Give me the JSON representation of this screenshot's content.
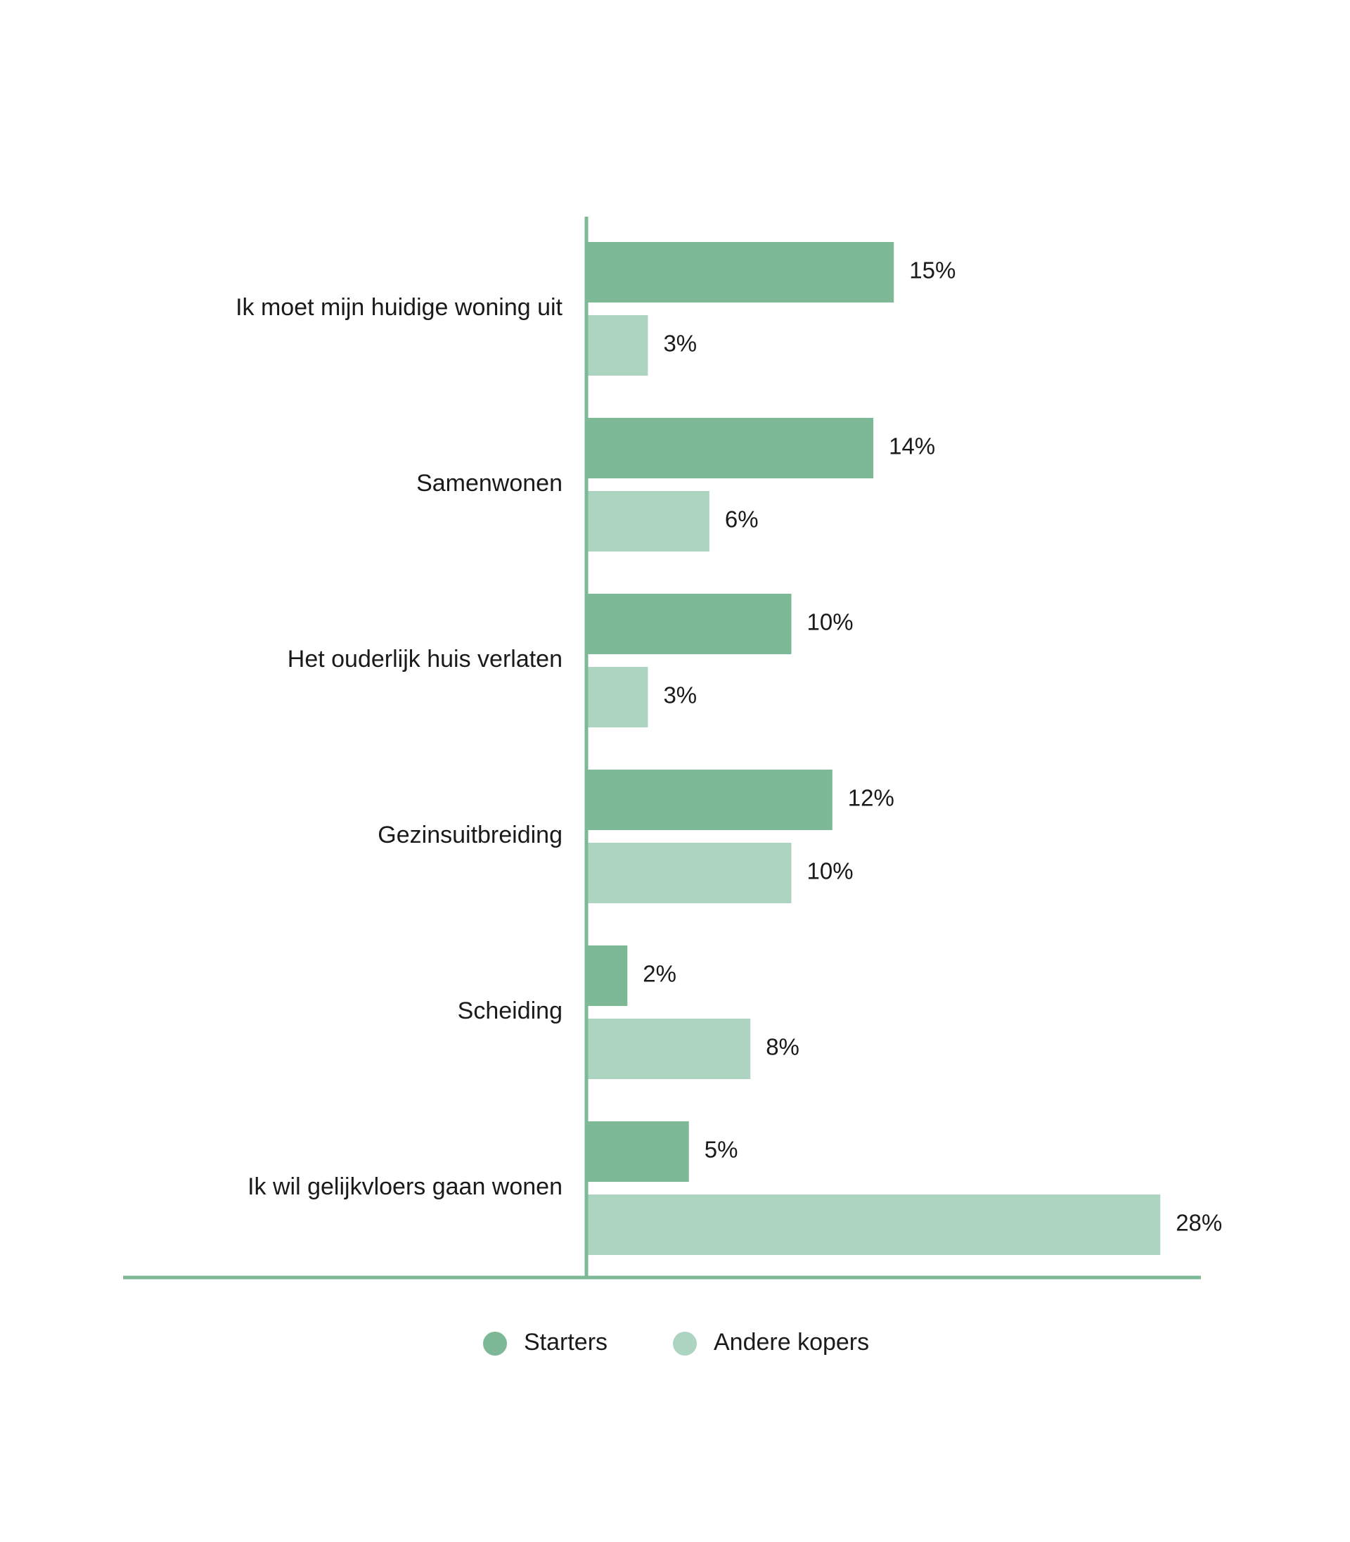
{
  "chart_data": {
    "type": "bar",
    "orientation": "horizontal",
    "categories": [
      "Ik moet mijn huidige woning uit",
      "Samenwonen",
      "Het ouderlijk huis verlaten",
      "Gezinsuitbreiding",
      "Scheiding",
      "Ik wil gelijkvloers gaan wonen"
    ],
    "series": [
      {
        "name": "Starters",
        "values": [
          15,
          14,
          10,
          12,
          2,
          5
        ],
        "labels": [
          "15%",
          "14%",
          "10%",
          "12%",
          "2%",
          "5%"
        ],
        "color": "#7db897"
      },
      {
        "name": "Andere kopers",
        "values": [
          3,
          6,
          3,
          10,
          8,
          28
        ],
        "labels": [
          "3%",
          "6%",
          "3%",
          "10%",
          "8%",
          "28%"
        ],
        "color": "#add4c1"
      }
    ],
    "xlim": [
      0,
      30
    ],
    "unit": "%",
    "axis_color": "#7db897",
    "grid": false,
    "legend_position": "bottom-center",
    "title": "",
    "xlabel": "",
    "ylabel": ""
  }
}
